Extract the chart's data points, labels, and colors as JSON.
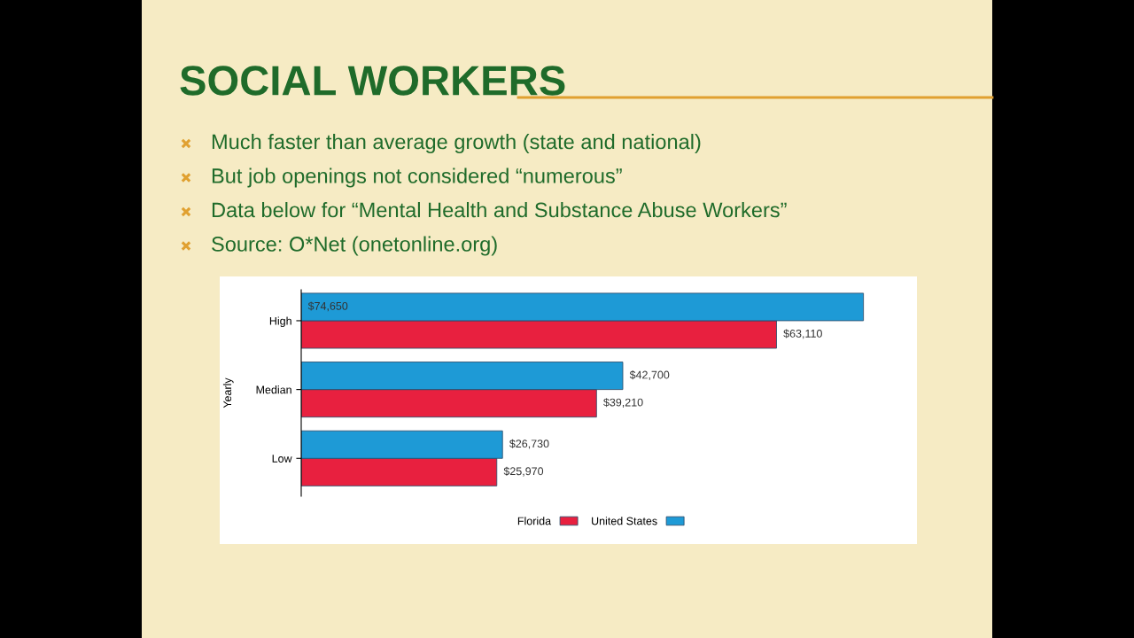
{
  "chart_data": {
    "type": "bar",
    "orientation": "horizontal",
    "title": "SOCIAL WORKERS",
    "annotations": [
      "Much faster than average growth (state and national)",
      "But job openings not considered “numerous”",
      "Data below for “Mental Health and Substance Abuse Workers”",
      "Source: O*Net (onetonline.org)"
    ],
    "ylabel": "Yearly",
    "categories": [
      "High",
      "Median",
      "Low"
    ],
    "series": [
      {
        "name": "Florida",
        "color": "#e8203f",
        "values": [
          63110,
          39210,
          25970
        ],
        "value_labels": [
          "$63,110",
          "$39,210",
          "$25,970"
        ]
      },
      {
        "name": "United States",
        "color": "#1e9ad6",
        "values": [
          74650,
          42700,
          26730
        ],
        "value_labels": [
          "$74,650",
          "$42,700",
          "$26,730"
        ]
      }
    ],
    "legend": "bottom",
    "grid": false
  }
}
